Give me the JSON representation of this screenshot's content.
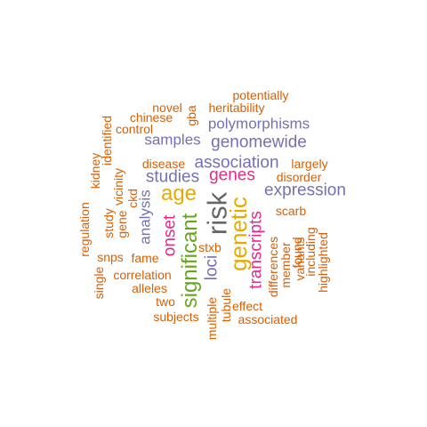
{
  "words": {
    "potentially": "potentially",
    "novel": "novel",
    "heritability": "heritability",
    "gba": "gba",
    "chinese": "chinese",
    "polymorphisms": "polymorphisms",
    "control": "control",
    "identified": "identified",
    "samples": "samples",
    "genomewide": "genomewide",
    "kidney": "kidney",
    "disease": "disease",
    "association": "association",
    "largely": "largely",
    "vicinity": "vicinity",
    "studies": "studies",
    "genes": "genes",
    "disorder": "disorder",
    "ckd": "ckd",
    "age": "age",
    "expression": "expression",
    "study": "study",
    "gene": "gene",
    "analysis": "analysis",
    "regulation": "regulation",
    "risk": "risk",
    "genetic": "genetic",
    "scarb": "scarb",
    "onset": "onset",
    "significant": "significant",
    "transcripts": "transcripts",
    "stxb": "stxb",
    "differences": "differences",
    "found": "found",
    "variants": "variants",
    "snps": "snps",
    "fame": "fame",
    "member": "member",
    "including": "including",
    "highlighted": "highlighted",
    "loci": "loci",
    "correlation": "correlation",
    "single": "single",
    "alleles": "alleles",
    "tubule": "tubule",
    "two": "two",
    "multiple": "multiple",
    "effect": "effect",
    "subjects": "subjects",
    "associated": "associated"
  },
  "palette": {
    "orange": "#D95F02",
    "purple": "#7570B3",
    "pink": "#E7298A",
    "green": "#66A61E",
    "gold": "#E6AB02",
    "gray": "#666666"
  }
}
